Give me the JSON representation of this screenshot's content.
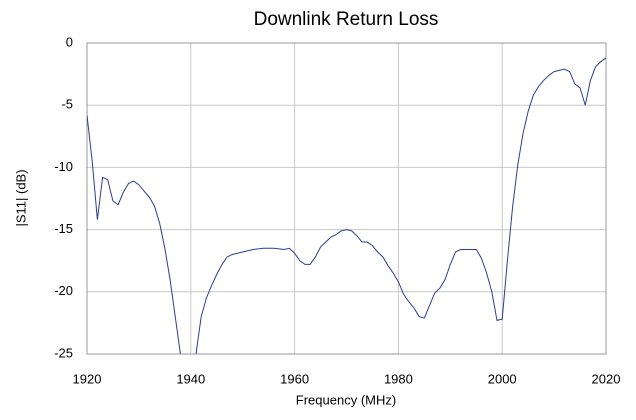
{
  "chart_data": {
    "type": "line",
    "title": "Downlink Return Loss",
    "xlabel": "Frequency (MHz)",
    "ylabel": "|S11| (dB)",
    "x": [
      1920,
      1921,
      1922,
      1923,
      1924,
      1925,
      1926,
      1927,
      1928,
      1929,
      1930,
      1931,
      1932,
      1933,
      1934,
      1935,
      1936,
      1937,
      1938,
      1939,
      1940,
      1941,
      1942,
      1943,
      1944,
      1945,
      1946,
      1947,
      1948,
      1950,
      1952,
      1954,
      1956,
      1958,
      1959,
      1960,
      1961,
      1962,
      1963,
      1964,
      1965,
      1966,
      1967,
      1968,
      1969,
      1970,
      1971,
      1972,
      1973,
      1974,
      1975,
      1976,
      1977,
      1978,
      1979,
      1980,
      1981,
      1982,
      1983,
      1984,
      1985,
      1986,
      1987,
      1988,
      1989,
      1990,
      1991,
      1992,
      1993,
      1994,
      1995,
      1996,
      1997,
      1998,
      1999,
      2000,
      2001,
      2002,
      2003,
      2004,
      2005,
      2006,
      2007,
      2008,
      2009,
      2010,
      2011,
      2012,
      2013,
      2014,
      2015,
      2016,
      2017,
      2018,
      2019,
      2020
    ],
    "series": [
      {
        "name": "|S11|",
        "color": "#2c3e8f",
        "values": [
          -5.8,
          -9.5,
          -14.2,
          -10.8,
          -11.0,
          -12.7,
          -13.0,
          -12.0,
          -11.3,
          -11.1,
          -11.4,
          -11.9,
          -12.4,
          -13.1,
          -14.5,
          -16.5,
          -19.0,
          -22.0,
          -25.0,
          -27,
          -27,
          -25.0,
          -22.0,
          -20.5,
          -19.5,
          -18.6,
          -17.8,
          -17.2,
          -17.0,
          -16.8,
          -16.6,
          -16.5,
          -16.5,
          -16.6,
          -16.5,
          -16.9,
          -17.5,
          -17.8,
          -17.8,
          -17.2,
          -16.4,
          -16.0,
          -15.6,
          -15.4,
          -15.1,
          -15.0,
          -15.1,
          -15.5,
          -16.0,
          -16.0,
          -16.3,
          -16.8,
          -17.2,
          -17.9,
          -18.5,
          -19.2,
          -20.2,
          -20.8,
          -21.3,
          -22.0,
          -22.1,
          -21.1,
          -20.1,
          -19.7,
          -19.0,
          -17.8,
          -16.8,
          -16.6,
          -16.6,
          -16.6,
          -16.6,
          -17.3,
          -18.5,
          -20.0,
          -22.3,
          -22.2,
          -17.5,
          -13.2,
          -9.8,
          -7.3,
          -5.5,
          -4.2,
          -3.5,
          -3.0,
          -2.6,
          -2.3,
          -2.2,
          -2.1,
          -2.3,
          -3.3,
          -3.6,
          -5.0,
          -3.0,
          -1.9,
          -1.5,
          -1.2
        ]
      }
    ],
    "xlim": [
      1920,
      2020
    ],
    "xticks": [
      1920,
      1940,
      1960,
      1980,
      2000,
      2020
    ],
    "ylim": [
      -25,
      0
    ],
    "yticks": [
      -25,
      -20,
      -15,
      -10,
      -5,
      0
    ],
    "grid": true
  }
}
